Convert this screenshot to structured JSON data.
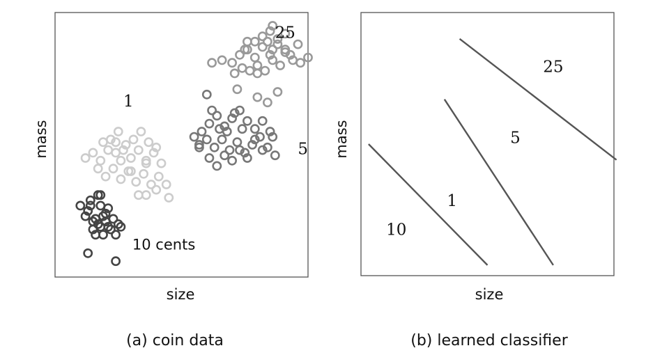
{
  "chart_data": [
    {
      "type": "scatter",
      "caption": "(a) coin data",
      "xlabel": "size",
      "ylabel": "mass",
      "xlim": [
        0,
        100
      ],
      "ylim": [
        0,
        100
      ],
      "series": [
        {
          "name": "10 cents",
          "color": "#444444",
          "label_at": [
            43,
            12
          ],
          "label_style": "sans",
          "points": [
            [
              10,
              27
            ],
            [
              13,
              25
            ],
            [
              17,
              31
            ],
            [
              14,
              29
            ],
            [
              12,
              23
            ],
            [
              15,
              21
            ],
            [
              18,
              19
            ],
            [
              20,
              21
            ],
            [
              19,
              23
            ],
            [
              22,
              18
            ],
            [
              18,
              27
            ],
            [
              16,
              22
            ],
            [
              21,
              26
            ],
            [
              23,
              22
            ],
            [
              24,
              16
            ],
            [
              17,
              20
            ],
            [
              16,
              16
            ],
            [
              20,
              24
            ],
            [
              25,
              20
            ],
            [
              26,
              19
            ],
            [
              18,
              31
            ],
            [
              13,
              9
            ],
            [
              24,
              6
            ],
            [
              14,
              27
            ],
            [
              21,
              19
            ],
            [
              19,
              16
            ],
            [
              15,
              18
            ]
          ]
        },
        {
          "name": "1",
          "color": "#cccccc",
          "label_at": [
            29,
            66
          ],
          "label_style": "serif",
          "points": [
            [
              12,
              45
            ],
            [
              15,
              47
            ],
            [
              18,
              44
            ],
            [
              21,
              48
            ],
            [
              24,
              51
            ],
            [
              27,
              48
            ],
            [
              30,
              45
            ],
            [
              33,
              48
            ],
            [
              36,
              44
            ],
            [
              39,
              47
            ],
            [
              42,
              43
            ],
            [
              17,
              41
            ],
            [
              20,
              38
            ],
            [
              23,
              41
            ],
            [
              26,
              37
            ],
            [
              29,
              40
            ],
            [
              32,
              36
            ],
            [
              35,
              39
            ],
            [
              38,
              35
            ],
            [
              41,
              38
            ],
            [
              44,
              35
            ],
            [
              19,
              51
            ],
            [
              22,
              52
            ],
            [
              25,
              55
            ],
            [
              28,
              50
            ],
            [
              31,
              52
            ],
            [
              34,
              55
            ],
            [
              37,
              51
            ],
            [
              40,
              49
            ],
            [
              26,
              44
            ],
            [
              30,
              40
            ],
            [
              33,
              31
            ],
            [
              36,
              31
            ],
            [
              45,
              30
            ],
            [
              40,
              33
            ],
            [
              24,
              47
            ],
            [
              36,
              43
            ]
          ]
        },
        {
          "name": "5",
          "color": "#777777",
          "label_at": [
            98,
            48
          ],
          "label_style": "serif",
          "points": [
            [
              55,
              53
            ],
            [
              58,
              55
            ],
            [
              61,
              58
            ],
            [
              64,
              61
            ],
            [
              67,
              57
            ],
            [
              70,
              60
            ],
            [
              73,
              63
            ],
            [
              76,
              59
            ],
            [
              79,
              56
            ],
            [
              82,
              59
            ],
            [
              85,
              55
            ],
            [
              57,
              49
            ],
            [
              60,
              52
            ],
            [
              63,
              49
            ],
            [
              66,
              52
            ],
            [
              69,
              48
            ],
            [
              72,
              51
            ],
            [
              75,
              47
            ],
            [
              78,
              50
            ],
            [
              81,
              53
            ],
            [
              84,
              49
            ],
            [
              87,
              46
            ],
            [
              61,
              45
            ],
            [
              64,
              42
            ],
            [
              67,
              46
            ],
            [
              70,
              44
            ],
            [
              73,
              48
            ],
            [
              76,
              45
            ],
            [
              79,
              52
            ],
            [
              82,
              48
            ],
            [
              60,
              69
            ],
            [
              62,
              63
            ],
            [
              57,
              50
            ],
            [
              68,
              55
            ],
            [
              86,
              53
            ],
            [
              74,
              56
            ],
            [
              65,
              56
            ],
            [
              71,
              62
            ]
          ]
        },
        {
          "name": "25",
          "color": "#999999",
          "label_at": [
            91,
            92
          ],
          "label_style": "serif",
          "points": [
            [
              62,
              81
            ],
            [
              66,
              82
            ],
            [
              70,
              81
            ],
            [
              73,
              84
            ],
            [
              76,
              86
            ],
            [
              79,
              83
            ],
            [
              82,
              87
            ],
            [
              85,
              84
            ],
            [
              88,
              88
            ],
            [
              91,
              85
            ],
            [
              94,
              82
            ],
            [
              97,
              81
            ],
            [
              100,
              83
            ],
            [
              71,
              77
            ],
            [
              74,
              79
            ],
            [
              77,
              78
            ],
            [
              80,
              80
            ],
            [
              83,
              78
            ],
            [
              86,
              82
            ],
            [
              89,
              80
            ],
            [
              79,
              89
            ],
            [
              82,
              91
            ],
            [
              85,
              93
            ],
            [
              88,
              90
            ],
            [
              91,
              92
            ],
            [
              86,
              86
            ],
            [
              84,
              89
            ],
            [
              80,
              77
            ],
            [
              72,
              71
            ],
            [
              80,
              68
            ],
            [
              84,
              66
            ],
            [
              88,
              70
            ],
            [
              76,
              89
            ],
            [
              86,
              95
            ],
            [
              91,
              86
            ],
            [
              93,
              84
            ],
            [
              96,
              88
            ],
            [
              75,
              86
            ]
          ]
        }
      ]
    },
    {
      "type": "line",
      "caption": "(b) learned classifier",
      "xlabel": "size",
      "ylabel": "mass",
      "xlim": [
        0,
        100
      ],
      "ylim": [
        0,
        100
      ],
      "series": [
        {
          "color": "#555555",
          "x": [
            3,
            50
          ],
          "y": [
            50,
            4
          ]
        },
        {
          "color": "#555555",
          "x": [
            33,
            76
          ],
          "y": [
            67,
            4
          ]
        },
        {
          "color": "#555555",
          "x": [
            39,
            101
          ],
          "y": [
            90,
            44
          ]
        }
      ],
      "annotations": [
        {
          "text": "10",
          "x": [
            14,
            17
          ]
        },
        {
          "text": "1",
          "x": [
            36,
            28
          ]
        },
        {
          "text": "5",
          "x": [
            61,
            52
          ]
        },
        {
          "text": "25",
          "x": [
            76,
            79
          ]
        }
      ]
    }
  ]
}
